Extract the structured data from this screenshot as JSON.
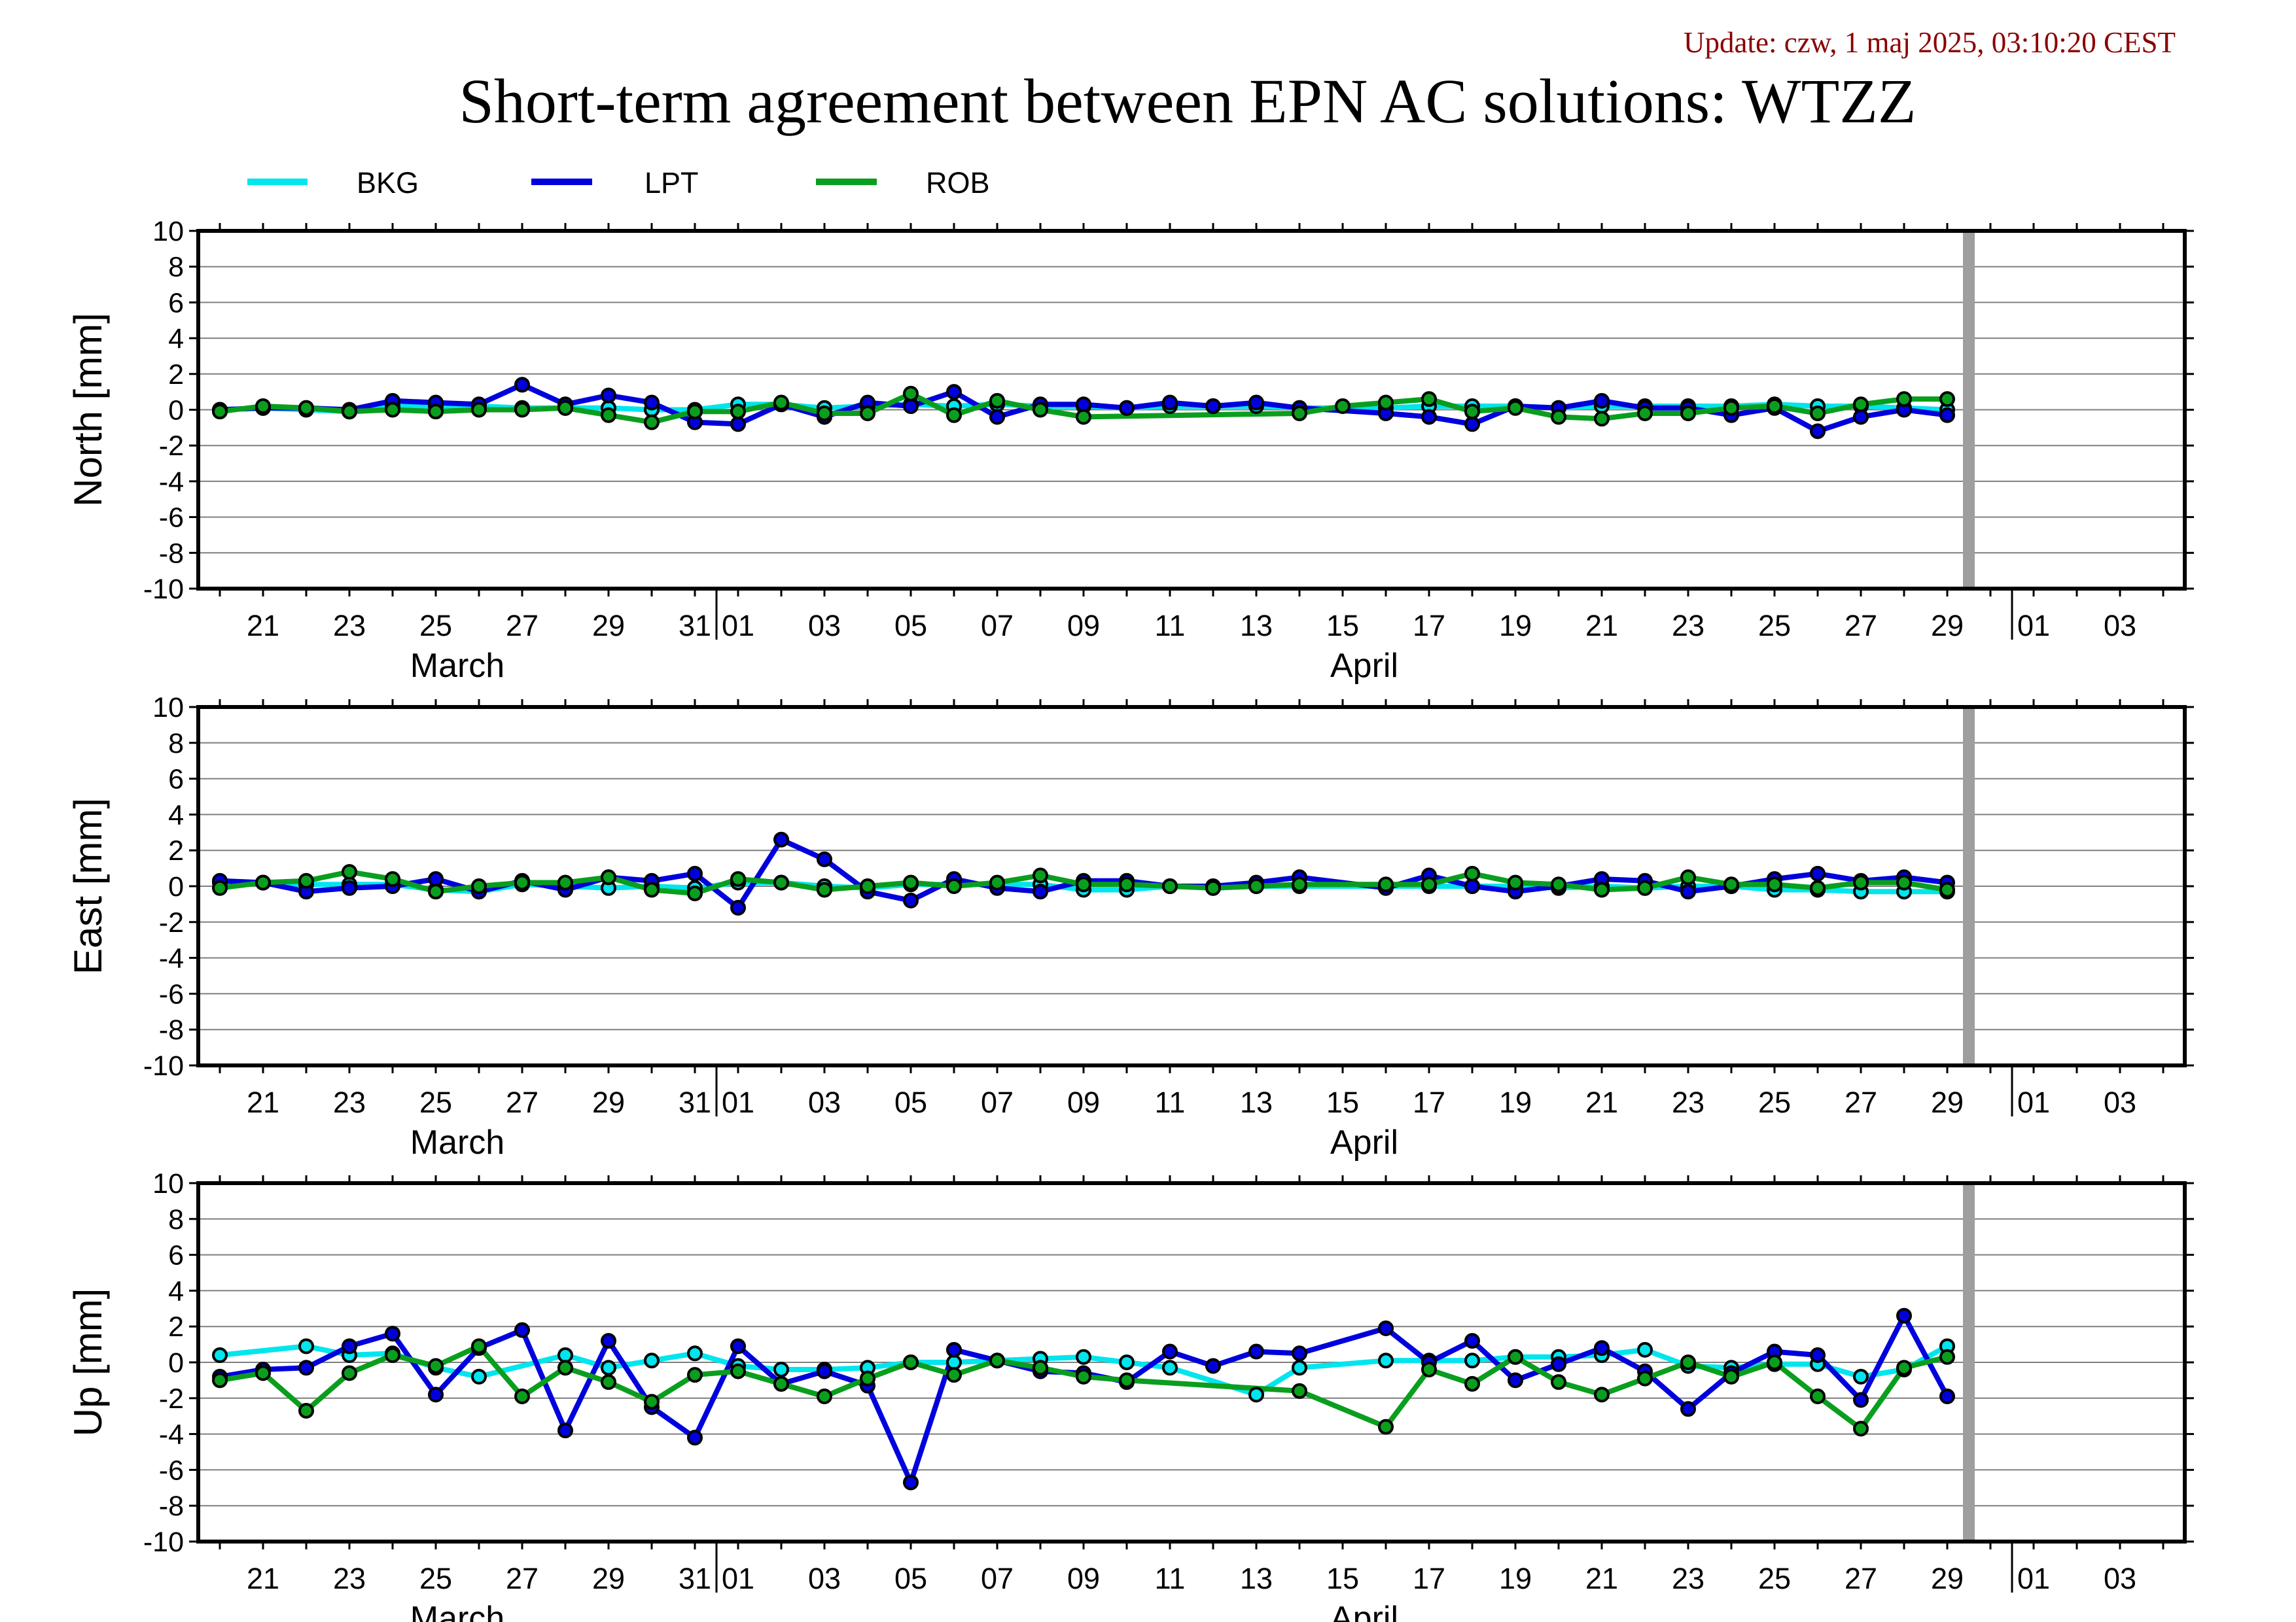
{
  "update_text": "Update: czw, 1 maj 2025, 03:10:20 CEST",
  "title": "Short-term agreement between EPN AC solutions: WTZZ",
  "colors": {
    "BKG": "#00e5ee",
    "LPT": "#0000dd",
    "ROB": "#0a9e1e",
    "frame": "#000000",
    "grid": "#7f7f7f",
    "marker_band": "#9e9e9e",
    "update": "#8b0000"
  },
  "legend": [
    {
      "name": "BKG",
      "color_key": "BKG"
    },
    {
      "name": "LPT",
      "color_key": "LPT"
    },
    {
      "name": "ROB",
      "color_key": "ROB"
    }
  ],
  "x_axis": {
    "tick_labels": [
      {
        "day": 21,
        "label": "21"
      },
      {
        "day": 23,
        "label": "23"
      },
      {
        "day": 25,
        "label": "25"
      },
      {
        "day": 27,
        "label": "27"
      },
      {
        "day": 29,
        "label": "29"
      },
      {
        "day": 31,
        "label": "31"
      },
      {
        "day": 32,
        "label": "01"
      },
      {
        "day": 34,
        "label": "03"
      },
      {
        "day": 36,
        "label": "05"
      },
      {
        "day": 38,
        "label": "07"
      },
      {
        "day": 40,
        "label": "09"
      },
      {
        "day": 42,
        "label": "11"
      },
      {
        "day": 44,
        "label": "13"
      },
      {
        "day": 46,
        "label": "15"
      },
      {
        "day": 48,
        "label": "17"
      },
      {
        "day": 50,
        "label": "19"
      },
      {
        "day": 52,
        "label": "21"
      },
      {
        "day": 54,
        "label": "23"
      },
      {
        "day": 56,
        "label": "25"
      },
      {
        "day": 58,
        "label": "27"
      },
      {
        "day": 60,
        "label": "29"
      },
      {
        "day": 62,
        "label": "01"
      },
      {
        "day": 64,
        "label": "03"
      }
    ],
    "month_labels": [
      {
        "day": 25.5,
        "label": "March"
      },
      {
        "day": 46.5,
        "label": "April"
      }
    ],
    "month_boundaries": [
      31.5,
      61.5
    ],
    "range": [
      19.5,
      65.5
    ],
    "current_marker_day": 60.5
  },
  "chart_data": [
    {
      "type": "line",
      "title": "",
      "ylabel": "North [mm]",
      "ylim": [
        -10,
        10
      ],
      "yticks": [
        10,
        8,
        6,
        4,
        2,
        0,
        -2,
        -4,
        -6,
        -8,
        -10
      ],
      "grid": true,
      "series": [
        {
          "name": "BKG",
          "x": [
            20,
            21,
            22,
            23,
            24,
            25,
            26,
            27,
            28,
            29,
            30,
            31,
            32,
            33,
            34,
            35,
            36,
            37,
            38,
            39,
            40,
            41,
            42,
            43,
            44,
            45,
            47,
            48,
            49,
            50,
            51,
            52,
            53,
            54,
            55,
            56,
            57,
            58,
            59,
            60
          ],
          "y": [
            0.0,
            0.1,
            0.0,
            -0.1,
            0.2,
            0.2,
            0.2,
            0.1,
            0.1,
            0.1,
            0.0,
            0.0,
            0.3,
            0.3,
            0.1,
            0.2,
            0.3,
            0.2,
            0.3,
            0.2,
            0.2,
            0.1,
            0.2,
            0.2,
            0.2,
            0.1,
            0.1,
            0.2,
            0.2,
            0.2,
            0.1,
            0.2,
            0.2,
            0.2,
            0.2,
            0.3,
            0.2,
            0.2,
            0.1,
            0.0
          ]
        },
        {
          "name": "LPT",
          "x": [
            20,
            21,
            22,
            23,
            24,
            25,
            26,
            27,
            28,
            29,
            30,
            31,
            32,
            33,
            34,
            35,
            36,
            37,
            38,
            39,
            40,
            41,
            42,
            43,
            44,
            45,
            47,
            48,
            49,
            50,
            51,
            52,
            53,
            54,
            55,
            56,
            57,
            58,
            59,
            60
          ],
          "y": [
            0.0,
            0.1,
            0.1,
            0.0,
            0.5,
            0.4,
            0.3,
            1.4,
            0.3,
            0.8,
            0.4,
            -0.7,
            -0.8,
            0.3,
            -0.4,
            0.4,
            0.2,
            1.0,
            -0.4,
            0.3,
            0.3,
            0.1,
            0.4,
            0.2,
            0.4,
            0.1,
            -0.2,
            -0.4,
            -0.8,
            0.2,
            0.1,
            0.5,
            0.1,
            0.1,
            -0.3,
            0.1,
            -1.2,
            -0.4,
            0.0,
            -0.3
          ]
        },
        {
          "name": "ROB",
          "x": [
            20,
            21,
            22,
            23,
            24,
            25,
            26,
            27,
            28,
            29,
            30,
            31,
            32,
            33,
            34,
            35,
            36,
            37,
            38,
            39,
            40,
            45,
            46,
            47,
            48,
            49,
            50,
            51,
            52,
            53,
            54,
            55,
            56,
            57,
            58,
            59,
            60
          ],
          "y": [
            -0.1,
            0.2,
            0.1,
            -0.1,
            0.0,
            -0.1,
            0.0,
            0.0,
            0.1,
            -0.3,
            -0.7,
            -0.1,
            -0.1,
            0.4,
            -0.2,
            -0.2,
            0.9,
            -0.3,
            0.5,
            0.0,
            -0.4,
            -0.2,
            0.2,
            0.4,
            0.6,
            -0.1,
            0.1,
            -0.4,
            -0.5,
            -0.2,
            -0.2,
            0.1,
            0.2,
            -0.2,
            0.3,
            0.6,
            0.6
          ]
        }
      ]
    },
    {
      "type": "line",
      "title": "",
      "ylabel": "East [mm]",
      "ylim": [
        -10,
        10
      ],
      "yticks": [
        10,
        8,
        6,
        4,
        2,
        0,
        -2,
        -4,
        -6,
        -8,
        -10
      ],
      "grid": true,
      "series": [
        {
          "name": "BKG",
          "x": [
            20,
            21,
            22,
            23,
            24,
            25,
            26,
            27,
            28,
            29,
            30,
            31,
            32,
            33,
            34,
            35,
            36,
            37,
            38,
            39,
            40,
            41,
            42,
            43,
            44,
            45,
            47,
            48,
            49,
            50,
            51,
            52,
            53,
            54,
            55,
            56,
            57,
            58,
            59,
            60
          ],
          "y": [
            0.2,
            0.2,
            0.1,
            0.1,
            0.1,
            -0.2,
            -0.3,
            0.1,
            0.0,
            -0.1,
            0.0,
            -0.1,
            0.2,
            0.2,
            0.0,
            -0.1,
            0.1,
            0.1,
            0.1,
            0.1,
            -0.2,
            -0.2,
            0.0,
            -0.1,
            0.0,
            0.0,
            0.0,
            0.0,
            0.0,
            0.0,
            -0.1,
            0.0,
            -0.1,
            0.0,
            0.0,
            -0.2,
            -0.2,
            -0.3,
            -0.3,
            -0.3
          ]
        },
        {
          "name": "LPT",
          "x": [
            20,
            21,
            22,
            23,
            24,
            25,
            26,
            27,
            28,
            29,
            30,
            31,
            32,
            33,
            34,
            35,
            36,
            37,
            38,
            39,
            40,
            41,
            42,
            43,
            44,
            45,
            47,
            48,
            49,
            50,
            51,
            52,
            53,
            54,
            55,
            56,
            57,
            58,
            59,
            60
          ],
          "y": [
            0.3,
            0.2,
            -0.3,
            -0.1,
            0.0,
            0.4,
            -0.3,
            0.3,
            -0.2,
            0.5,
            0.3,
            0.7,
            -1.2,
            2.6,
            1.5,
            -0.3,
            -0.8,
            0.4,
            -0.1,
            -0.3,
            0.3,
            0.3,
            0.0,
            0.0,
            0.2,
            0.5,
            -0.1,
            0.6,
            0.0,
            -0.3,
            0.0,
            0.4,
            0.3,
            -0.3,
            0.0,
            0.4,
            0.7,
            0.3,
            0.5,
            0.2
          ]
        },
        {
          "name": "ROB",
          "x": [
            20,
            21,
            22,
            23,
            24,
            25,
            26,
            27,
            28,
            29,
            30,
            31,
            32,
            33,
            34,
            35,
            36,
            37,
            38,
            39,
            40,
            41,
            42,
            43,
            44,
            45,
            47,
            48,
            49,
            50,
            51,
            52,
            53,
            54,
            55,
            56,
            57,
            58,
            59,
            60
          ],
          "y": [
            -0.1,
            0.2,
            0.3,
            0.8,
            0.4,
            -0.3,
            0.0,
            0.2,
            0.2,
            0.5,
            -0.2,
            -0.4,
            0.4,
            0.2,
            -0.2,
            0.0,
            0.2,
            0.0,
            0.2,
            0.6,
            0.1,
            0.1,
            0.0,
            -0.1,
            0.0,
            0.1,
            0.1,
            0.1,
            0.7,
            0.2,
            0.1,
            -0.2,
            -0.1,
            0.5,
            0.1,
            0.1,
            -0.1,
            0.2,
            0.2,
            -0.2
          ]
        }
      ]
    },
    {
      "type": "line",
      "title": "",
      "ylabel": "Up [mm]",
      "ylim": [
        -10,
        10
      ],
      "yticks": [
        10,
        8,
        6,
        4,
        2,
        0,
        -2,
        -4,
        -6,
        -8,
        -10
      ],
      "grid": true,
      "series": [
        {
          "name": "BKG",
          "x": [
            20,
            22,
            23,
            24,
            25,
            26,
            28,
            29,
            30,
            31,
            32,
            33,
            34,
            35,
            36,
            37,
            38,
            39,
            40,
            41,
            42,
            44,
            45,
            47,
            48,
            49,
            50,
            51,
            52,
            53,
            54,
            55,
            56,
            57,
            58,
            59,
            60
          ],
          "y": [
            0.4,
            0.9,
            0.4,
            0.5,
            -0.3,
            -0.8,
            0.4,
            -0.3,
            0.1,
            0.5,
            -0.2,
            -0.4,
            -0.4,
            -0.3,
            0.0,
            0.0,
            0.1,
            0.2,
            0.3,
            0.0,
            -0.3,
            -1.8,
            -0.3,
            0.1,
            0.1,
            0.1,
            0.3,
            0.3,
            0.4,
            0.7,
            -0.2,
            -0.3,
            -0.1,
            -0.1,
            -0.8,
            -0.4,
            0.9
          ]
        },
        {
          "name": "LPT",
          "x": [
            20,
            21,
            22,
            23,
            24,
            25,
            26,
            27,
            28,
            29,
            30,
            31,
            32,
            33,
            34,
            35,
            36,
            37,
            38,
            39,
            40,
            41,
            42,
            43,
            44,
            45,
            47,
            48,
            49,
            50,
            51,
            52,
            53,
            54,
            55,
            56,
            57,
            58,
            59,
            60
          ],
          "y": [
            -0.8,
            -0.4,
            -0.3,
            0.9,
            1.6,
            -1.8,
            0.8,
            1.8,
            -3.8,
            1.2,
            -2.5,
            -4.2,
            0.9,
            -1.2,
            -0.5,
            -1.3,
            -6.7,
            0.7,
            0.1,
            -0.5,
            -0.6,
            -1.1,
            0.6,
            -0.2,
            0.6,
            0.5,
            1.9,
            0.0,
            1.2,
            -1.0,
            -0.1,
            0.8,
            -0.5,
            -2.6,
            -0.6,
            0.6,
            0.4,
            -2.1,
            2.6,
            -1.9
          ]
        },
        {
          "name": "ROB",
          "x": [
            20,
            21,
            22,
            23,
            24,
            25,
            26,
            27,
            28,
            29,
            30,
            31,
            32,
            33,
            34,
            35,
            36,
            37,
            38,
            39,
            40,
            41,
            45,
            47,
            48,
            49,
            50,
            51,
            52,
            53,
            54,
            55,
            56,
            57,
            58,
            59,
            60
          ],
          "y": [
            -1.0,
            -0.6,
            -2.7,
            -0.6,
            0.4,
            -0.2,
            0.9,
            -1.9,
            -0.3,
            -1.1,
            -2.2,
            -0.7,
            -0.5,
            -1.2,
            -1.9,
            -0.9,
            0.0,
            -0.7,
            0.1,
            -0.3,
            -0.8,
            -1.0,
            -1.6,
            -3.6,
            -0.4,
            -1.2,
            0.3,
            -1.1,
            -1.8,
            -0.9,
            0.0,
            -0.8,
            0.0,
            -1.9,
            -3.7,
            -0.3,
            0.3
          ]
        }
      ]
    }
  ]
}
